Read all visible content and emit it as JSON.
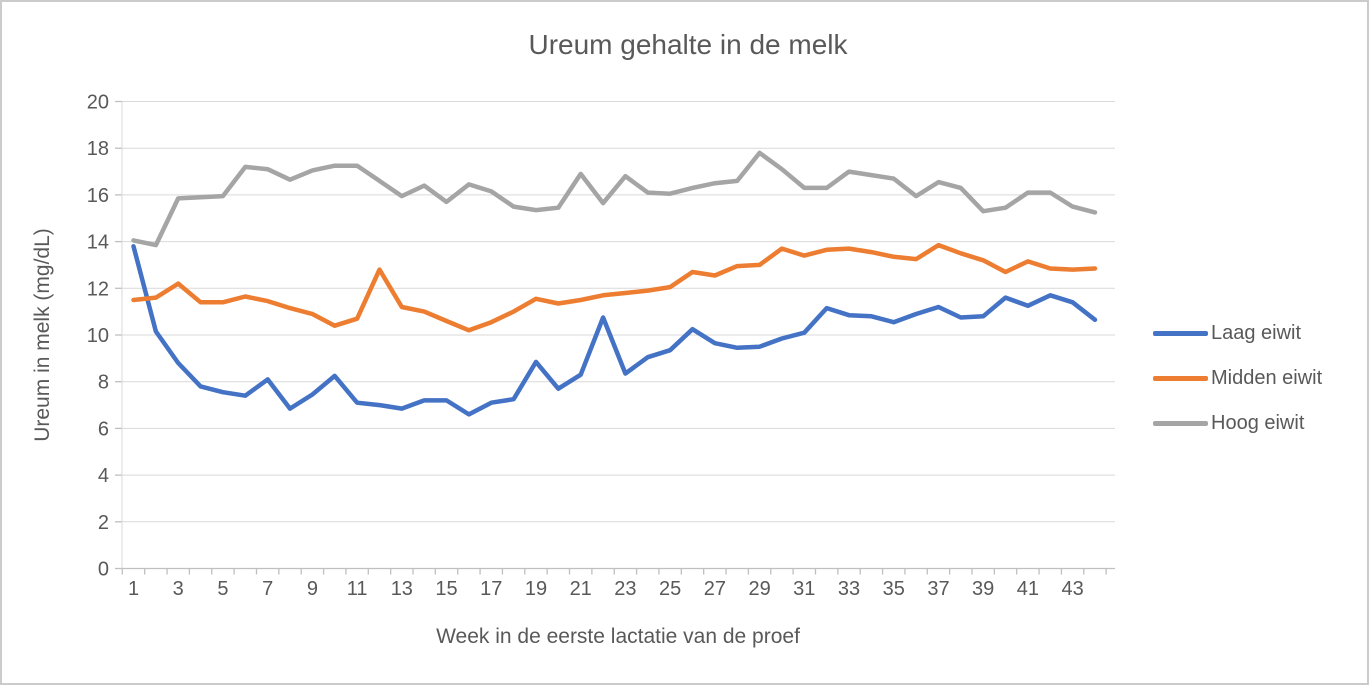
{
  "chart_data": {
    "type": "line",
    "title": "Ureum gehalte in de melk",
    "xlabel": "Week in de eerste lactatie van de proef",
    "ylabel": "Ureum in melk (mg/dL)",
    "x": [
      1,
      2,
      3,
      4,
      5,
      6,
      7,
      8,
      9,
      10,
      11,
      12,
      13,
      14,
      15,
      16,
      17,
      18,
      19,
      20,
      21,
      22,
      23,
      24,
      25,
      26,
      27,
      28,
      29,
      30,
      31,
      32,
      33,
      34,
      35,
      36,
      37,
      38,
      39,
      40,
      41,
      42,
      43,
      44
    ],
    "x_tick_labels": [
      "1",
      "3",
      "5",
      "7",
      "9",
      "11",
      "13",
      "15",
      "17",
      "19",
      "21",
      "23",
      "25",
      "27",
      "29",
      "31",
      "33",
      "35",
      "37",
      "39",
      "41",
      "43"
    ],
    "ylim": [
      0,
      20
    ],
    "y_tick_step": 2,
    "grid": true,
    "legend_position": "right",
    "series": [
      {
        "name": "Laag eiwit",
        "color": "#4472C4",
        "values": [
          13.8,
          10.15,
          8.8,
          7.8,
          7.55,
          7.4,
          8.1,
          6.85,
          7.45,
          8.25,
          7.1,
          7.0,
          6.85,
          7.2,
          7.2,
          6.6,
          7.1,
          7.25,
          8.85,
          7.7,
          8.3,
          10.75,
          8.35,
          9.05,
          9.35,
          10.25,
          9.65,
          9.45,
          9.5,
          9.85,
          10.1,
          11.15,
          10.85,
          10.8,
          10.55,
          10.9,
          11.2,
          10.75,
          10.8,
          11.6,
          11.25,
          11.7,
          11.4,
          10.65
        ]
      },
      {
        "name": "Midden eiwit",
        "color": "#ED7D31",
        "values": [
          11.5,
          11.6,
          12.2,
          11.4,
          11.4,
          11.65,
          11.45,
          11.15,
          10.9,
          10.4,
          10.7,
          12.8,
          11.2,
          11.0,
          10.6,
          10.2,
          10.55,
          11.0,
          11.55,
          11.35,
          11.5,
          11.7,
          11.8,
          11.9,
          12.05,
          12.7,
          12.55,
          12.95,
          13.0,
          13.7,
          13.4,
          13.65,
          13.7,
          13.55,
          13.35,
          13.25,
          13.85,
          13.5,
          13.2,
          12.7,
          13.15,
          12.85,
          12.8,
          12.85
        ]
      },
      {
        "name": "Hoog eiwit",
        "color": "#A5A5A5",
        "values": [
          14.05,
          13.85,
          15.85,
          15.9,
          15.95,
          17.2,
          17.1,
          16.65,
          17.05,
          17.25,
          17.25,
          16.6,
          15.95,
          16.4,
          15.7,
          16.45,
          16.15,
          15.5,
          15.35,
          15.45,
          16.9,
          15.65,
          16.8,
          16.1,
          16.05,
          16.3,
          16.5,
          16.6,
          17.8,
          17.1,
          16.3,
          16.3,
          17.0,
          16.85,
          16.7,
          15.95,
          16.55,
          16.3,
          15.3,
          15.45,
          16.1,
          16.1,
          15.5,
          15.25
        ]
      }
    ],
    "style": {
      "gridline_color": "#D9D9D9",
      "axis_line_color": "#BFBFBF",
      "text_color": "#595959",
      "line_width": 4.5,
      "background": "#FFFFFF",
      "border_color": "#CBCBCB"
    }
  }
}
